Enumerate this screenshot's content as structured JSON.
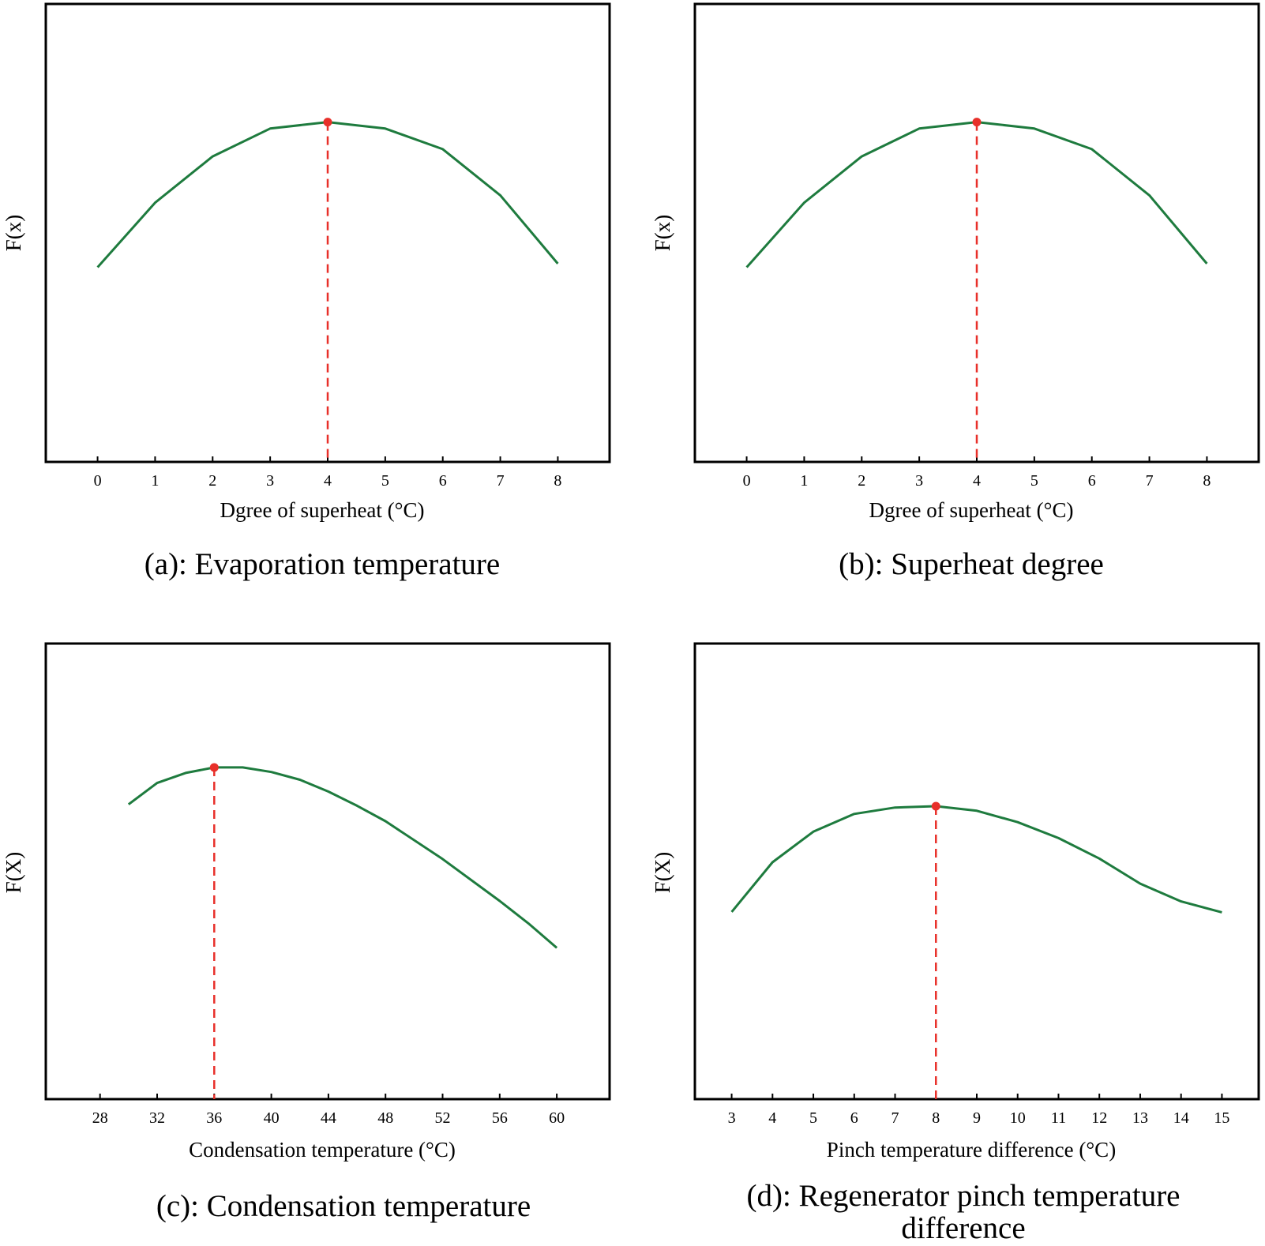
{
  "colors": {
    "line": "#1e7b3e",
    "marker": "#e8302a",
    "axis": "#000000"
  },
  "chart_data": [
    {
      "id": "a",
      "type": "line",
      "caption": "(a): Evaporation temperature",
      "xlabel": "Dgree of superheat  (°C)",
      "ylabel": "F(x)",
      "xticks": [
        0,
        1,
        2,
        3,
        4,
        5,
        6,
        7,
        8
      ],
      "xlim": [
        -0.9,
        8.9
      ],
      "ylim": [
        0,
        1
      ],
      "x": [
        0,
        1,
        2,
        3,
        4,
        5,
        6,
        7,
        8
      ],
      "y": [
        0.425,
        0.566,
        0.667,
        0.728,
        0.742,
        0.728,
        0.683,
        0.582,
        0.433
      ],
      "optimum": {
        "x": 4,
        "y": 0.742
      }
    },
    {
      "id": "b",
      "type": "line",
      "caption": "(b): Superheat degree",
      "xlabel": "Dgree of superheat  (°C)",
      "ylabel": "F(x)",
      "xticks": [
        0,
        1,
        2,
        3,
        4,
        5,
        6,
        7,
        8
      ],
      "xlim": [
        -0.9,
        8.9
      ],
      "ylim": [
        0,
        1
      ],
      "x": [
        0,
        1,
        2,
        3,
        4,
        5,
        6,
        7,
        8
      ],
      "y": [
        0.425,
        0.566,
        0.667,
        0.728,
        0.742,
        0.728,
        0.683,
        0.582,
        0.433
      ],
      "optimum": {
        "x": 4,
        "y": 0.742
      }
    },
    {
      "id": "c",
      "type": "line",
      "caption": "(c): Condensation temperature",
      "xlabel": "Condensation temperature (°C)",
      "ylabel": "F(X)",
      "xticks": [
        28,
        32,
        36,
        40,
        44,
        48,
        52,
        56,
        60
      ],
      "xlim": [
        24.2,
        63.7
      ],
      "ylim": [
        0,
        1
      ],
      "x": [
        30,
        32,
        34,
        36,
        38,
        40,
        42,
        44,
        46,
        48,
        52,
        56,
        58,
        60
      ],
      "y": [
        0.647,
        0.694,
        0.716,
        0.728,
        0.728,
        0.718,
        0.701,
        0.675,
        0.644,
        0.61,
        0.527,
        0.435,
        0.386,
        0.332
      ],
      "optimum": {
        "x": 36,
        "y": 0.728
      }
    },
    {
      "id": "d",
      "type": "line",
      "caption": "(d): Regenerator pinch temperature difference",
      "caption_lines": [
        "(d): Regenerator pinch temperature",
        "difference"
      ],
      "xlabel": "Pinch temperature difference (°C)",
      "ylabel": "F(X)",
      "xticks": [
        3,
        4,
        5,
        6,
        7,
        8,
        9,
        10,
        11,
        12,
        13,
        14,
        15
      ],
      "xlim": [
        2.1,
        15.9
      ],
      "ylim": [
        0,
        1
      ],
      "x": [
        3,
        4,
        5,
        6,
        7,
        8,
        9,
        10,
        11,
        12,
        13,
        14,
        15
      ],
      "y": [
        0.411,
        0.52,
        0.587,
        0.626,
        0.64,
        0.643,
        0.633,
        0.608,
        0.573,
        0.528,
        0.473,
        0.434,
        0.41
      ],
      "optimum": {
        "x": 8,
        "y": 0.643
      }
    }
  ]
}
